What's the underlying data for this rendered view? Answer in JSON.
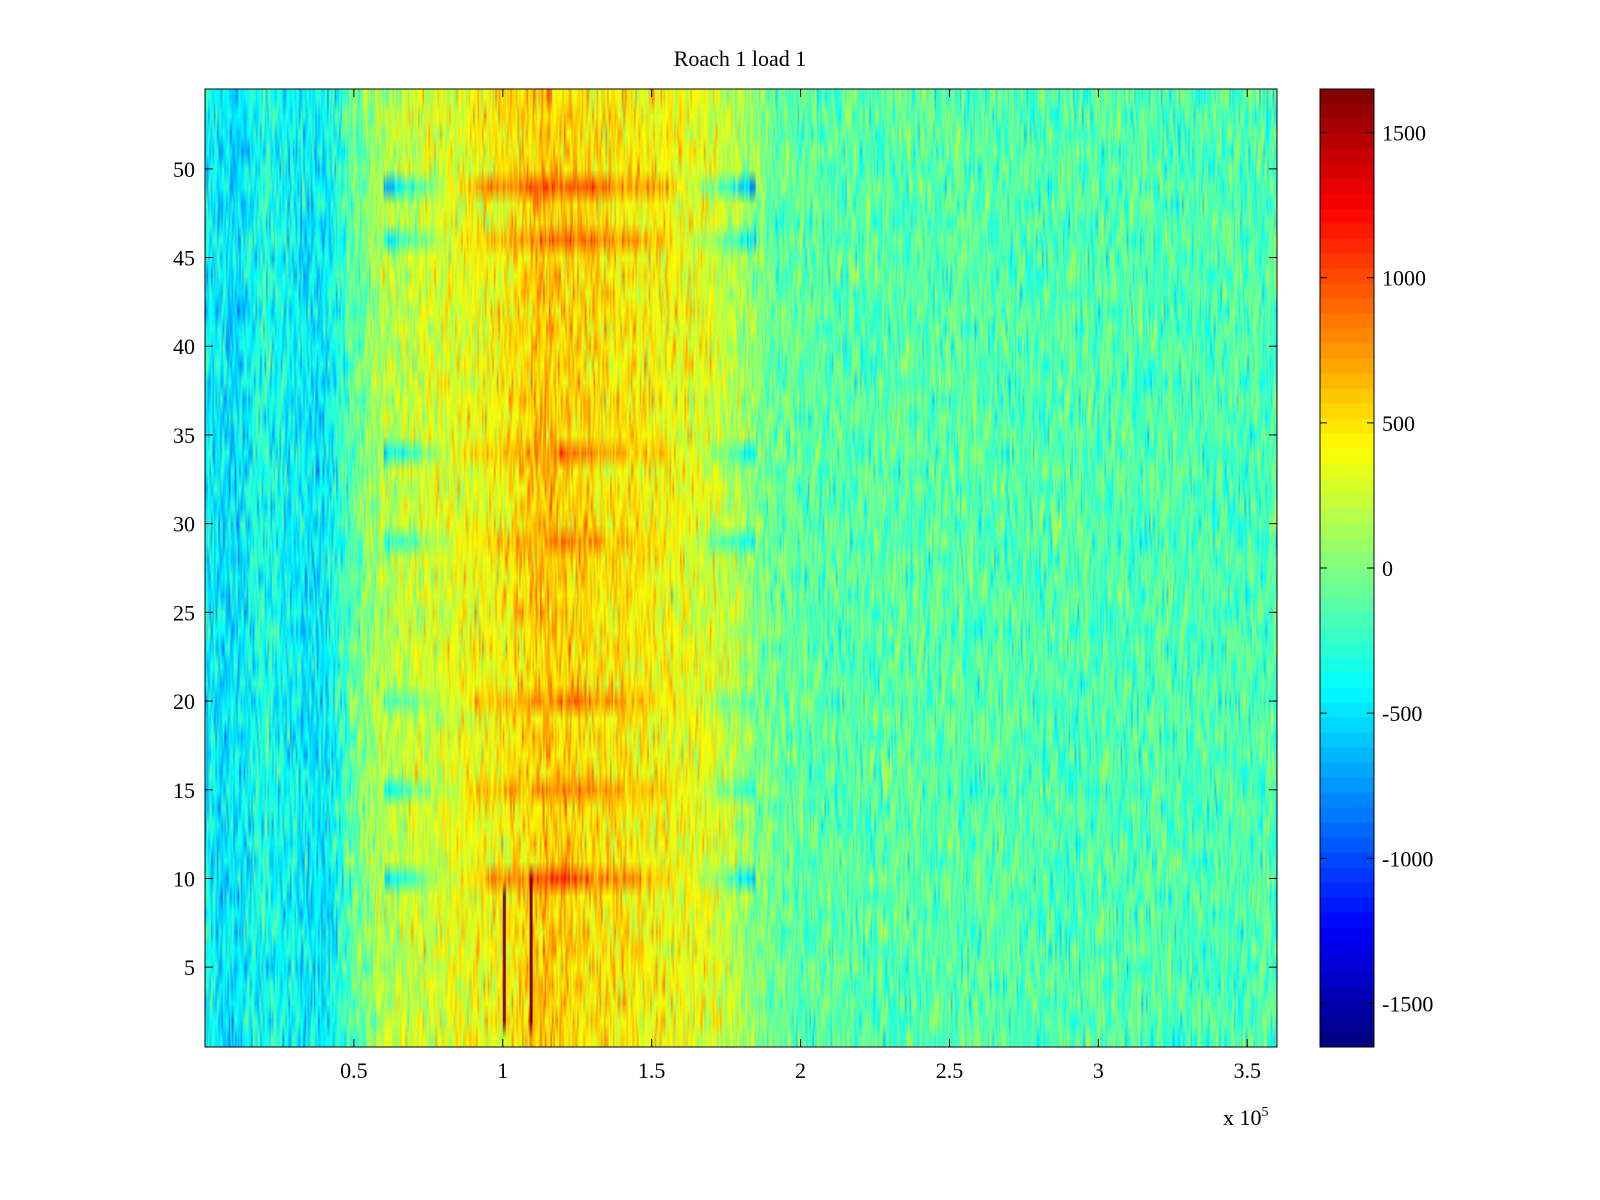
{
  "chart_data": {
    "type": "heatmap",
    "title": "Roach 1 load 1",
    "xlabel": "",
    "ylabel": "",
    "xlim": [
      0,
      360000
    ],
    "ylim": [
      0.5,
      54.5
    ],
    "x_ticks": [
      50000,
      100000,
      150000,
      200000,
      250000,
      300000,
      350000
    ],
    "x_tick_labels": [
      "0.5",
      "1",
      "1.5",
      "2",
      "2.5",
      "3",
      "3.5"
    ],
    "x_multiplier_label": "x 10",
    "x_multiplier_exponent": "5",
    "y_ticks": [
      5,
      10,
      15,
      20,
      25,
      30,
      35,
      40,
      45,
      50
    ],
    "y_tick_labels": [
      "5",
      "10",
      "15",
      "20",
      "25",
      "30",
      "35",
      "40",
      "45",
      "50"
    ],
    "rows": 54,
    "colorbar": {
      "clim": [
        -1650,
        1650
      ],
      "ticks": [
        -1500,
        -1000,
        -500,
        0,
        500,
        1000,
        1500
      ],
      "tick_labels": [
        "-1500",
        "-1000",
        "-500",
        "0",
        "500",
        "1000",
        "1500"
      ],
      "colormap": "jet"
    },
    "mean_value_profile": {
      "x": [
        0,
        10000,
        20000,
        30000,
        40000,
        50000,
        60000,
        80000,
        100000,
        110000,
        115000,
        120000,
        130000,
        150000,
        170000,
        180000,
        190000,
        200000,
        250000,
        300000,
        360000
      ],
      "values": [
        -420,
        -500,
        -320,
        -420,
        -480,
        -100,
        180,
        300,
        420,
        560,
        620,
        560,
        500,
        420,
        320,
        120,
        -60,
        -120,
        -130,
        -150,
        -160
      ]
    },
    "highlighted_rows": [
      {
        "row": 49,
        "x_start": 60000,
        "x_end": 185000,
        "note_values": [
          -1100,
          900,
          1200,
          800,
          -1100
        ]
      },
      {
        "row": 46,
        "x_start": 60000,
        "x_end": 185000,
        "note_values": [
          -900,
          700,
          1100,
          700,
          -800
        ]
      },
      {
        "row": 34,
        "x_start": 60000,
        "x_end": 185000,
        "note_values": [
          -800,
          600,
          1000,
          600,
          -600
        ]
      },
      {
        "row": 29,
        "x_start": 60000,
        "x_end": 185000,
        "note_values": [
          -700,
          600,
          900,
          600,
          -700
        ]
      },
      {
        "row": 20,
        "x_start": 60000,
        "x_end": 185000,
        "note_values": [
          -500,
          600,
          1000,
          600,
          -400
        ]
      },
      {
        "row": 15,
        "x_start": 60000,
        "x_end": 185000,
        "note_values": [
          -700,
          600,
          1000,
          700,
          -500
        ]
      },
      {
        "row": 10,
        "x_start": 60000,
        "x_end": 185000,
        "note_values": [
          -900,
          700,
          1300,
          800,
          -800
        ]
      }
    ],
    "vertical_spikes": [
      {
        "x": 100500,
        "row_start": 2,
        "row_end": 9,
        "value": 1650
      },
      {
        "x": 109500,
        "row_start": 2,
        "row_end": 10,
        "value": 1650
      }
    ]
  }
}
